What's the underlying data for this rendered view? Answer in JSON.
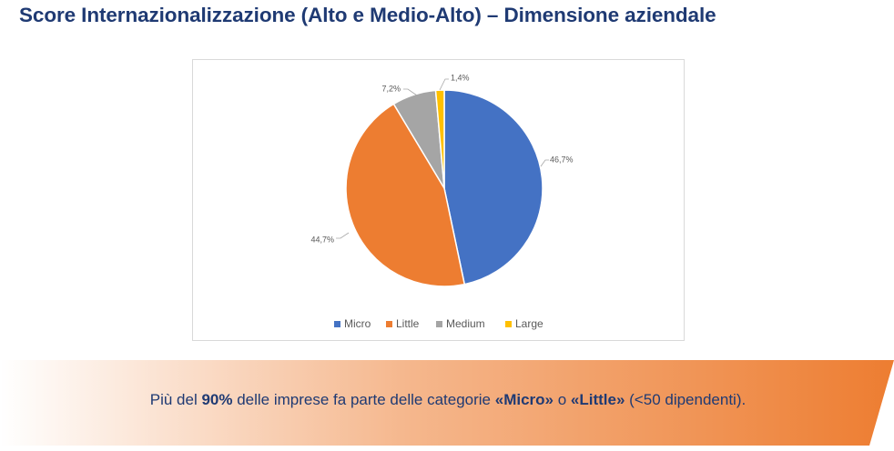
{
  "title": "Score Internazionalizzazione (Alto e Medio-Alto) – Dimensione aziendale",
  "chart_data": {
    "type": "pie",
    "categories": [
      "Micro",
      "Little",
      "Medium",
      "Large"
    ],
    "values": [
      46.7,
      44.7,
      7.2,
      1.4
    ],
    "data_labels": [
      "46,7%",
      "44,7%",
      "7,2%",
      "1,4%"
    ],
    "colors": [
      "#4472c4",
      "#ed7d31",
      "#a5a5a5",
      "#ffc000"
    ],
    "legend_position": "bottom"
  },
  "banner": {
    "part1": "Più del ",
    "highlight1": "90%",
    "part2": " delle imprese fa parte delle categorie ",
    "highlight2": "«Micro»",
    "part3": " o ",
    "highlight3": "«Little»",
    "part4": " (<50 dipendenti)."
  }
}
